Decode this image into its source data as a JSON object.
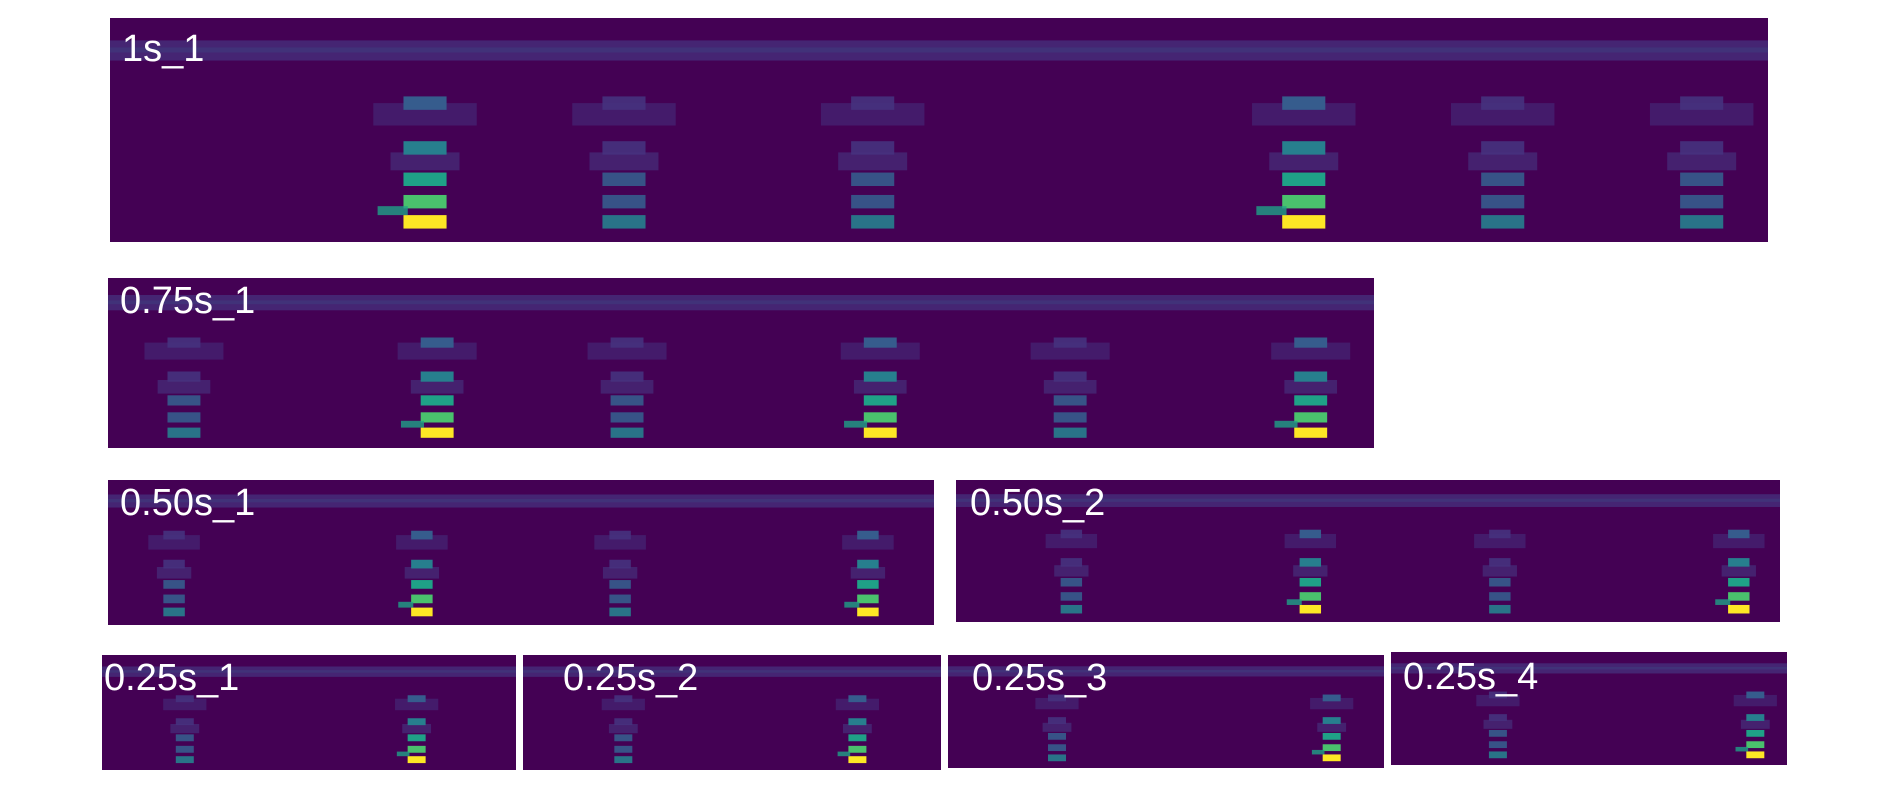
{
  "figure": {
    "panels": [
      {
        "label": "1s_1",
        "peaks": [
          0.19,
          0.31,
          0.46,
          0.72,
          0.84,
          0.96
        ],
        "strong": [
          0.19,
          0.72
        ]
      },
      {
        "label": "0.75s_1",
        "peaks": [
          0.06,
          0.26,
          0.41,
          0.61,
          0.76,
          0.95
        ],
        "strong": [
          0.26,
          0.61,
          0.95
        ]
      },
      {
        "label": "0.50s_1",
        "peaks": [
          0.08,
          0.38,
          0.62,
          0.92
        ],
        "strong": [
          0.38,
          0.92
        ]
      },
      {
        "label": "0.50s_2",
        "peaks": [
          0.14,
          0.43,
          0.66,
          0.95
        ],
        "strong": [
          0.43,
          0.95
        ]
      },
      {
        "label": "0.25s_1",
        "peaks": [
          0.2,
          0.76
        ],
        "strong": [
          0.76
        ]
      },
      {
        "label": "0.25s_2",
        "peaks": [
          0.24,
          0.8
        ],
        "strong": [
          0.8
        ]
      },
      {
        "label": "0.25s_3",
        "peaks": [
          0.25,
          0.88
        ],
        "strong": [
          0.88
        ]
      },
      {
        "label": "0.25s_4",
        "peaks": [
          0.27,
          0.92
        ],
        "strong": [
          0.92
        ]
      }
    ]
  },
  "colors": {
    "background": "#440154",
    "low": "#46327e",
    "mid": "#365c8d",
    "teal": "#277f8e",
    "green": "#1fa187",
    "light_green": "#4ac16d",
    "yellow": "#fde725"
  }
}
